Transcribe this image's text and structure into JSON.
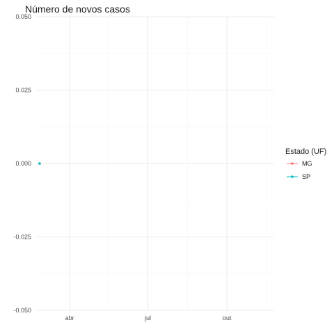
{
  "chart_data": {
    "type": "line",
    "title": "Número de novos casos",
    "xlabel": "",
    "ylabel": "",
    "x_tick_labels": [
      "abr",
      "jul",
      "out"
    ],
    "x_ticks": [
      "2020-04-01",
      "2020-07-01",
      "2020-10-01"
    ],
    "xlim": [
      "2020-02-22",
      "2020-11-25"
    ],
    "y_ticks": [
      -0.05,
      -0.025,
      0,
      0.025,
      0.05
    ],
    "y_tick_labels": [
      "-0.050",
      "-0.025",
      "0.000",
      "0.025",
      "0.050"
    ],
    "ylim": [
      -0.05,
      0.05
    ],
    "grid": true,
    "legend": {
      "title": "Estado (UF)",
      "position": "right"
    },
    "series": [
      {
        "name": "MG",
        "color": "#F8766D",
        "x": [
          "2020-02-26"
        ],
        "y": [
          0
        ]
      },
      {
        "name": "SP",
        "color": "#00BFC4",
        "x": [
          "2020-02-26"
        ],
        "y": [
          0
        ]
      }
    ]
  }
}
